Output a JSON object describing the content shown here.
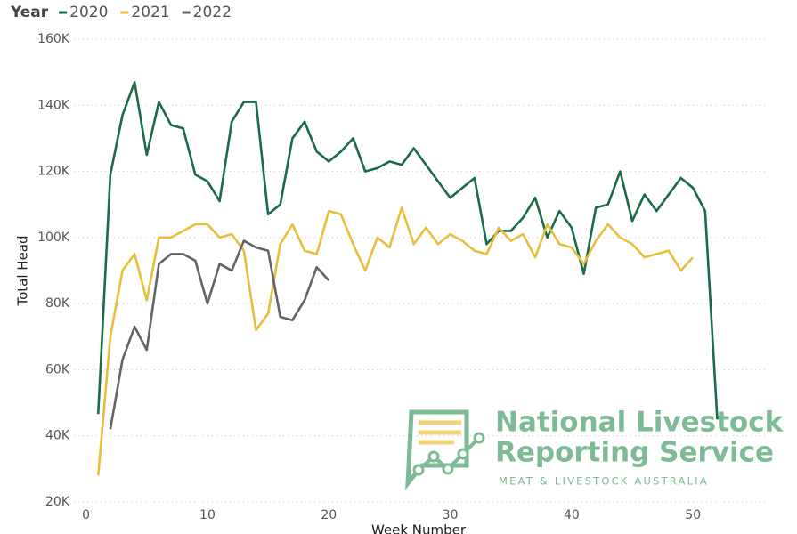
{
  "chart_data": {
    "type": "line",
    "legend_title": "Year",
    "y_label": "Total Head",
    "x_label": "Week Number",
    "xlim": [
      -1,
      56
    ],
    "xticks": [
      0,
      10,
      20,
      30,
      40,
      50
    ],
    "ylim": [
      20000,
      160000
    ],
    "yticks": [
      {
        "value": 20000,
        "label": "20K"
      },
      {
        "value": 40000,
        "label": "40K"
      },
      {
        "value": 60000,
        "label": "60K"
      },
      {
        "value": 80000,
        "label": "80K"
      },
      {
        "value": 100000,
        "label": "100K"
      },
      {
        "value": 120000,
        "label": "120K"
      },
      {
        "value": 140000,
        "label": "140K"
      },
      {
        "value": 160000,
        "label": "160K"
      }
    ],
    "grid": true,
    "series": [
      {
        "name": "2020",
        "color": "#1a6b47",
        "x": [
          1,
          2,
          3,
          4,
          5,
          6,
          7,
          8,
          9,
          10,
          11,
          12,
          13,
          14,
          15,
          16,
          17,
          18,
          19,
          20,
          21,
          22,
          23,
          24,
          25,
          26,
          27,
          28,
          29,
          30,
          31,
          32,
          33,
          34,
          35,
          36,
          37,
          38,
          39,
          40,
          41,
          42,
          43,
          44,
          45,
          46,
          47,
          48,
          49,
          50,
          51,
          52
        ],
        "values": [
          46600,
          119000,
          137000,
          147000,
          125000,
          141000,
          134000,
          133000,
          119000,
          117000,
          111000,
          135000,
          141000,
          141000,
          107000,
          110000,
          130000,
          135000,
          126000,
          123000,
          126000,
          130000,
          120000,
          121000,
          123000,
          122000,
          127000,
          122000,
          117000,
          112000,
          115000,
          118000,
          98000,
          102000,
          102000,
          106000,
          112000,
          100000,
          108000,
          103000,
          89000,
          109000,
          110000,
          120000,
          105000,
          113000,
          108000,
          113000,
          118000,
          115000,
          108000,
          45000
        ]
      },
      {
        "name": "2021",
        "color": "#e6bf3c",
        "x": [
          1,
          2,
          3,
          4,
          5,
          6,
          7,
          8,
          9,
          10,
          11,
          12,
          13,
          14,
          15,
          16,
          17,
          18,
          19,
          20,
          21,
          22,
          23,
          24,
          25,
          26,
          27,
          28,
          29,
          30,
          31,
          32,
          33,
          34,
          35,
          36,
          37,
          38,
          39,
          40,
          41,
          42,
          43,
          44,
          45,
          46,
          47,
          48,
          49,
          50
        ],
        "values": [
          28000,
          70000,
          90000,
          95000,
          81000,
          100000,
          100000,
          102000,
          104000,
          104000,
          100000,
          101000,
          96000,
          72000,
          77000,
          98000,
          104000,
          96000,
          95000,
          108000,
          107000,
          98000,
          90000,
          100000,
          97000,
          109000,
          98000,
          103000,
          98000,
          101000,
          99000,
          96000,
          95000,
          103000,
          99000,
          101000,
          94000,
          104000,
          98000,
          97000,
          92000,
          99000,
          104000,
          100000,
          98000,
          94000,
          95000,
          96000,
          90000,
          94000
        ]
      },
      {
        "name": "2022",
        "color": "#646464",
        "x": [
          2,
          3,
          4,
          5,
          6,
          7,
          8,
          9,
          10,
          11,
          12,
          13,
          14,
          15,
          16,
          17,
          18,
          19,
          20
        ],
        "values": [
          42000,
          63000,
          73000,
          66000,
          92000,
          95000,
          95000,
          93000,
          80000,
          92000,
          90000,
          99000,
          97000,
          96000,
          76000,
          75000,
          81000,
          91000,
          87000
        ]
      }
    ],
    "logo": {
      "line1": "National Livestock",
      "line2": "Reporting Service",
      "tagline": "MEAT & LIVESTOCK AUSTRALIA"
    }
  }
}
